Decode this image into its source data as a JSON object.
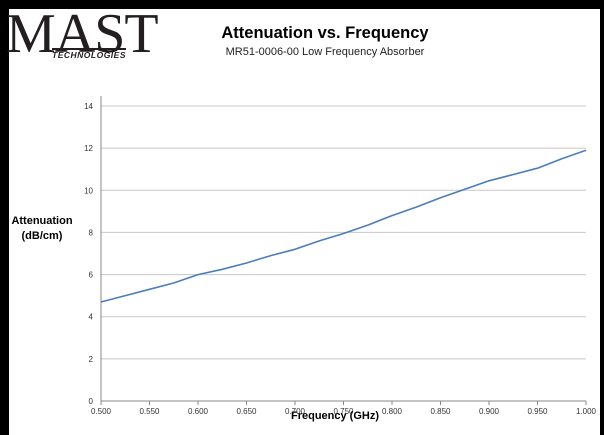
{
  "logo": {
    "main": "MAST",
    "sub": "TECHNOLOGIES"
  },
  "chart_data": {
    "type": "line",
    "title": "Attenuation vs. Frequency",
    "subtitle": "MR51-0006-00 Low Frequency Absorber",
    "xlabel": "Frequency (GHz)",
    "ylabel_line1": "Attenuation",
    "ylabel_line2": "(dB/cm)",
    "xlim": [
      0.5,
      1.0
    ],
    "ylim": [
      0,
      14
    ],
    "x_ticks": [
      "0.500",
      "0.550",
      "0.600",
      "0.650",
      "0.700",
      "0.750",
      "0.800",
      "0.850",
      "0.900",
      "0.950",
      "1.000"
    ],
    "y_ticks": [
      "0",
      "2",
      "4",
      "6",
      "8",
      "10",
      "12",
      "14"
    ],
    "grid": "horizontal",
    "line_color": "#4a7ebb",
    "series": [
      {
        "x": [
          0.5,
          0.525,
          0.55,
          0.575,
          0.6,
          0.625,
          0.65,
          0.675,
          0.7,
          0.725,
          0.75,
          0.775,
          0.8,
          0.825,
          0.85,
          0.875,
          0.9,
          0.925,
          0.95,
          0.975,
          1.0
        ],
        "y": [
          4.7,
          5.0,
          5.3,
          5.6,
          6.0,
          6.25,
          6.55,
          6.9,
          7.2,
          7.6,
          7.95,
          8.35,
          8.8,
          9.2,
          9.65,
          10.05,
          10.45,
          10.75,
          11.05,
          11.5,
          11.9
        ]
      }
    ]
  }
}
